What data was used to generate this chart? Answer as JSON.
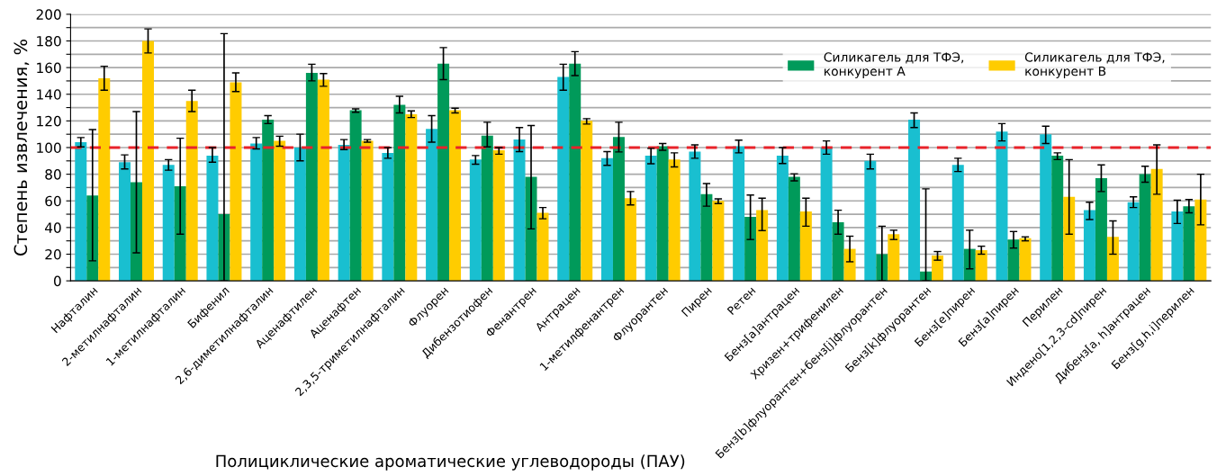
{
  "chart_data": {
    "type": "bar",
    "xlabel": "Полициклические ароматические углеводороды (ПАУ)",
    "ylabel": "Степень извлечения, %",
    "categories": [
      "Нафталин",
      "2-метилнафталин",
      "1-метилнафталин",
      "Бифенил",
      "2,6-диметилнафталин",
      "Аценафтилен",
      "Аценафтен",
      "2,3,5-триметилнафталин",
      "Флуорен",
      "Дибензотиофен",
      "Фенантрен",
      "Антрацен",
      "1-метилфенантрен",
      "Флуорантен",
      "Пирен",
      "Ретен",
      "Бенз[a]антрацен",
      "Хризен+трифенилен",
      "Бенз[b]флуорантен+бенз[j]флуорантен",
      "Бенз[k]флуорантен",
      "Бенз[e]пирен",
      "Бенз[a]пирен",
      "Перилен",
      "Индено[1,2,3-cd]пирен",
      "Дибенз[a, h]антрацен",
      "Бенз[g,h,i]перилен"
    ],
    "series": [
      {
        "color": "#19bfd0",
        "values": [
          104,
          89,
          87,
          94,
          103,
          100,
          102,
          96,
          114,
          91,
          106,
          153,
          92,
          94,
          97,
          101,
          94,
          100,
          90,
          121,
          87,
          112,
          110,
          53,
          59,
          52
        ],
        "errors": [
          [
            100.5,
            107.5
          ],
          [
            84,
            94.5
          ],
          [
            83,
            91
          ],
          [
            89,
            100
          ],
          [
            99,
            107.5
          ],
          [
            90,
            110
          ],
          [
            98.5,
            106
          ],
          [
            92,
            100
          ],
          [
            104,
            124
          ],
          [
            87.5,
            94
          ],
          [
            97,
            115
          ],
          [
            143,
            162.5
          ],
          [
            86.7,
            97
          ],
          [
            87.8,
            99.4
          ],
          [
            92,
            102
          ],
          [
            96,
            105.6
          ],
          [
            88,
            100
          ],
          [
            95,
            105
          ],
          [
            84,
            95
          ],
          [
            115,
            126
          ],
          [
            82,
            92
          ],
          [
            105,
            118
          ],
          [
            103,
            116
          ],
          [
            46,
            59
          ],
          [
            55,
            63
          ],
          [
            43,
            60.5
          ]
        ]
      },
      {
        "name": "Силикагель для ТФЭ,\nконкурент A",
        "color": "#009a5a",
        "values": [
          64,
          74,
          71,
          50,
          121,
          156,
          128,
          132,
          163,
          109,
          78,
          163,
          108,
          101,
          65,
          48,
          78,
          44,
          20,
          7,
          24,
          31,
          94,
          77,
          80,
          56
        ],
        "errors": [
          [
            15,
            113.5
          ],
          [
            21,
            127
          ],
          [
            35,
            107
          ],
          [
            0,
            185.5
          ],
          [
            118,
            124
          ],
          [
            150,
            162.5
          ],
          [
            126.5,
            129
          ],
          [
            126,
            138.5
          ],
          [
            151,
            175
          ],
          [
            100.5,
            119
          ],
          [
            39,
            116.5
          ],
          [
            154,
            172
          ],
          [
            96.7,
            119
          ],
          [
            98,
            103
          ],
          [
            56,
            73
          ],
          [
            31,
            64.4
          ],
          [
            75,
            80.3
          ],
          [
            35,
            53
          ],
          [
            0,
            41
          ],
          [
            0,
            69
          ],
          [
            9,
            38
          ],
          [
            24.6,
            37
          ],
          [
            91,
            96
          ],
          [
            67,
            87
          ],
          [
            74,
            86
          ],
          [
            51,
            61
          ]
        ]
      },
      {
        "name": "Силикагель для ТФЭ,\nконкурент B",
        "color": "#ffcc00",
        "values": [
          152,
          180,
          135,
          149,
          105,
          151,
          105,
          125,
          128,
          98,
          51,
          120,
          62,
          91,
          60,
          53,
          52,
          24,
          35,
          19,
          23,
          32,
          63,
          33,
          84,
          61
        ],
        "errors": [
          [
            143,
            161
          ],
          [
            171,
            189
          ],
          [
            127,
            143
          ],
          [
            142,
            156
          ],
          [
            101,
            108.5
          ],
          [
            146,
            155.5
          ],
          [
            104,
            106
          ],
          [
            122.5,
            127.5
          ],
          [
            126,
            129.5
          ],
          [
            95,
            100
          ],
          [
            46.6,
            55
          ],
          [
            117.6,
            121.7
          ],
          [
            57,
            67
          ],
          [
            85.5,
            96
          ],
          [
            58,
            61.5
          ],
          [
            37.7,
            62
          ],
          [
            41,
            62
          ],
          [
            14.3,
            33.5
          ],
          [
            31,
            38
          ],
          [
            15.5,
            22
          ],
          [
            20,
            26
          ],
          [
            30,
            33
          ],
          [
            35,
            91
          ],
          [
            20,
            45
          ],
          [
            65,
            102
          ],
          [
            42,
            80
          ]
        ]
      }
    ],
    "ylim": [
      0,
      200
    ],
    "yticks": [
      0,
      {
        "value": 10,
        "label": null
      },
      20,
      {
        "value": 30,
        "label": null
      },
      40,
      {
        "value": 50,
        "label": null
      },
      60,
      {
        "value": 70,
        "label": null
      },
      80,
      {
        "value": 90,
        "label": null
      },
      100,
      {
        "value": 110,
        "label": null
      },
      120,
      {
        "value": 130,
        "label": null
      },
      140,
      {
        "value": 150,
        "label": null
      },
      160,
      {
        "value": 170,
        "label": null
      },
      180,
      {
        "value": 190,
        "label": null
      },
      200
    ],
    "grid": "y",
    "legend": "top right",
    "ref_lines": [
      {
        "axis": "y",
        "value": 100,
        "color": "#e8222a",
        "line_style": "dashed"
      }
    ]
  }
}
